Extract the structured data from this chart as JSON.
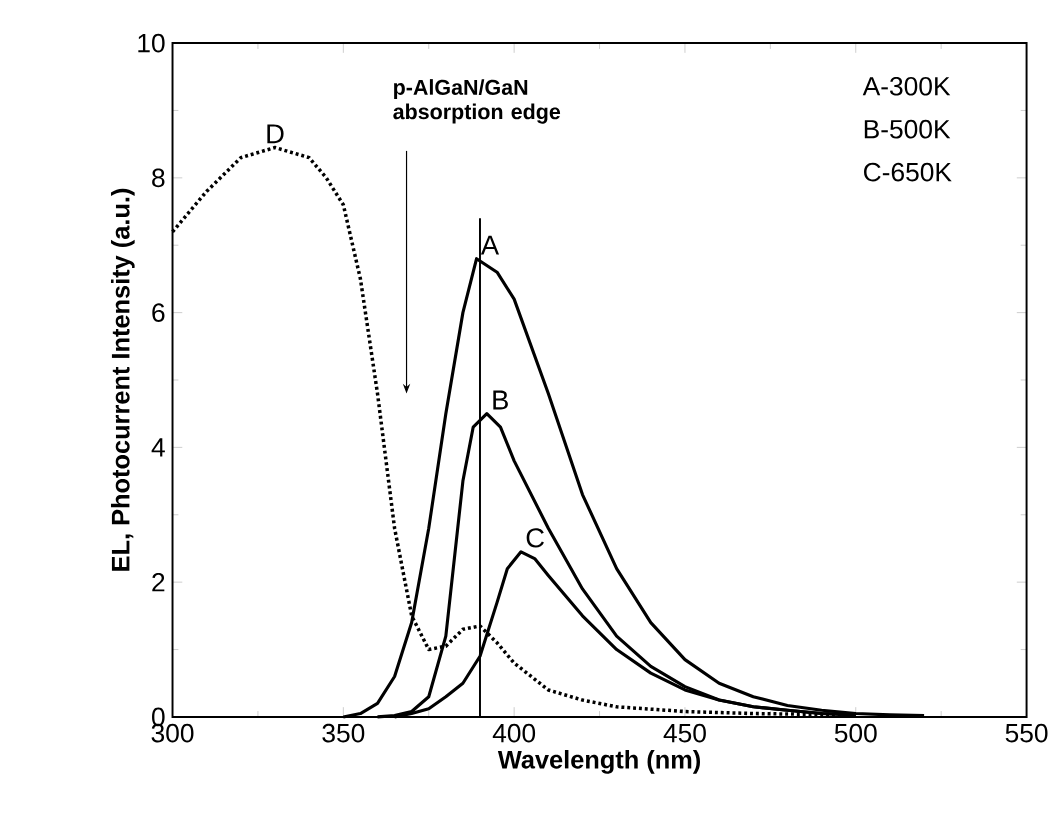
{
  "chart_data": {
    "type": "line",
    "xlabel": "Wavelength (nm)",
    "ylabel": "EL, Photocurrent Intensity (a.u.)",
    "xlim": [
      300,
      550
    ],
    "xticks": [
      300,
      350,
      400,
      450,
      500,
      550
    ],
    "ylim": [
      0,
      10
    ],
    "yticks": [
      0,
      2,
      4,
      6,
      8,
      10
    ],
    "grid": false,
    "marker": "none",
    "series": [
      {
        "name": "A",
        "color": "#000000",
        "line_style": "solid",
        "x": [
          350,
          355,
          360,
          365,
          370,
          375,
          380,
          385,
          389,
          395,
          400,
          410,
          420,
          430,
          440,
          450,
          460,
          470,
          480,
          490,
          500,
          510,
          520
        ],
        "values": [
          0,
          0.05,
          0.2,
          0.6,
          1.4,
          2.8,
          4.5,
          6.0,
          6.8,
          6.6,
          6.2,
          4.8,
          3.3,
          2.2,
          1.4,
          0.85,
          0.5,
          0.3,
          0.17,
          0.1,
          0.05,
          0.03,
          0.02
        ]
      },
      {
        "name": "B",
        "color": "#000000",
        "line_style": "solid",
        "x": [
          360,
          365,
          370,
          375,
          380,
          385,
          388,
          392,
          396,
          400,
          410,
          420,
          430,
          440,
          450,
          460,
          470,
          480,
          490,
          500
        ],
        "values": [
          0,
          0.02,
          0.08,
          0.3,
          1.2,
          3.5,
          4.3,
          4.5,
          4.3,
          3.8,
          2.8,
          1.9,
          1.2,
          0.75,
          0.45,
          0.25,
          0.15,
          0.1,
          0.05,
          0.03
        ]
      },
      {
        "name": "C",
        "color": "#000000",
        "line_style": "solid",
        "x": [
          365,
          370,
          375,
          380,
          385,
          390,
          395,
          398,
          402,
          406,
          410,
          420,
          430,
          440,
          450,
          460,
          470,
          480,
          490,
          500
        ],
        "values": [
          0,
          0.05,
          0.12,
          0.3,
          0.5,
          0.9,
          1.7,
          2.2,
          2.45,
          2.35,
          2.1,
          1.5,
          1.0,
          0.65,
          0.4,
          0.25,
          0.15,
          0.1,
          0.05,
          0.03
        ]
      },
      {
        "name": "D",
        "color": "#000000",
        "line_style": "dotted",
        "x": [
          300,
          310,
          320,
          330,
          340,
          345,
          350,
          355,
          360,
          365,
          370,
          375,
          380,
          385,
          390,
          395,
          400,
          410,
          420,
          430,
          450,
          470,
          500
        ],
        "values": [
          7.2,
          7.8,
          8.3,
          8.45,
          8.3,
          8.0,
          7.6,
          6.5,
          4.8,
          2.8,
          1.5,
          1.0,
          1.05,
          1.3,
          1.35,
          1.1,
          0.8,
          0.4,
          0.25,
          0.15,
          0.08,
          0.05,
          0.03
        ]
      },
      {
        "color": "#000000",
        "line_style": "solid",
        "x": [
          390,
          390
        ],
        "values": [
          0,
          7.4
        ]
      }
    ],
    "annotations": [
      "p-AlGaN/GaN absorption edge",
      "A-300K",
      "B-500K",
      "C-650K"
    ]
  }
}
